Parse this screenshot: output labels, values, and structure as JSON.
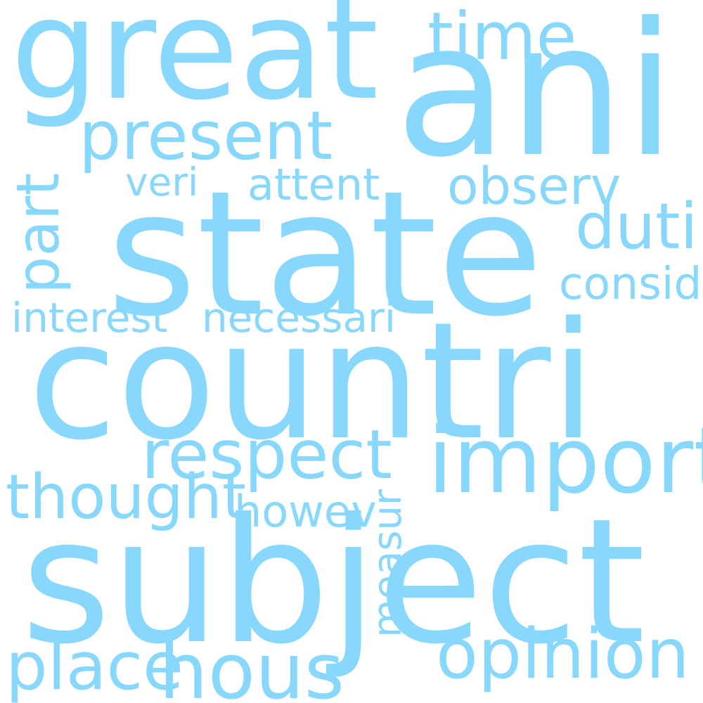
{
  "cloud": {
    "color": "#87d8fc",
    "words": {
      "subject": "subject",
      "countri": "countri",
      "state": "state",
      "ani": "ani",
      "great": "great",
      "import": "import",
      "respect": "respect",
      "opinion": "opinion",
      "hous": "hous",
      "present": "present",
      "place": "place",
      "thought": "thought",
      "part": "part",
      "time": "time",
      "observ": "observ",
      "duti": "duti",
      "measur": "measur",
      "attent": "attent",
      "consid": "consid",
      "veri": "veri",
      "howev": "howev",
      "interest": "interest",
      "necessari": "necessari"
    }
  }
}
